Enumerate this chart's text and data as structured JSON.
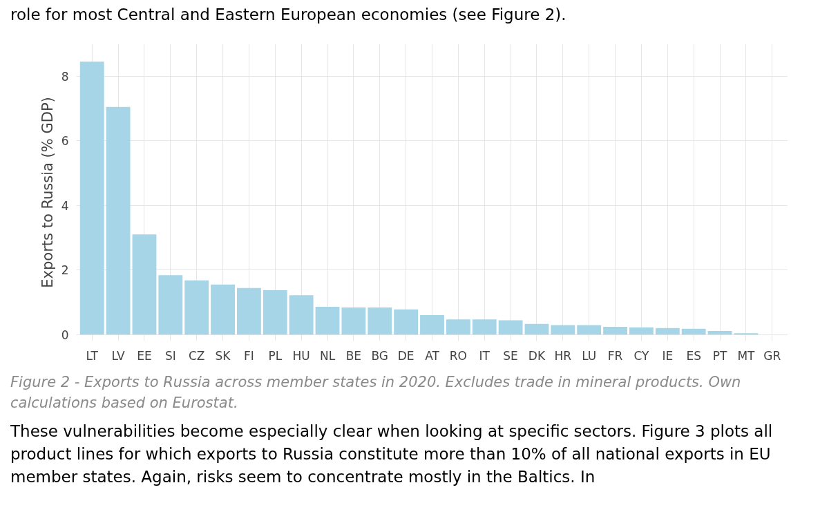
{
  "chart_data": {
    "type": "bar",
    "ylabel": "Exports to Russia (% GDP)",
    "categories": [
      "LT",
      "LV",
      "EE",
      "SI",
      "CZ",
      "SK",
      "FI",
      "PL",
      "HU",
      "NL",
      "BE",
      "BG",
      "DE",
      "AT",
      "RO",
      "IT",
      "SE",
      "DK",
      "HR",
      "LU",
      "FR",
      "CY",
      "IE",
      "ES",
      "PT",
      "MT",
      "GR"
    ],
    "values": [
      8.45,
      7.05,
      3.1,
      1.84,
      1.68,
      1.55,
      1.44,
      1.37,
      1.22,
      0.86,
      0.84,
      0.84,
      0.78,
      0.6,
      0.47,
      0.47,
      0.44,
      0.33,
      0.29,
      0.29,
      0.24,
      0.22,
      0.2,
      0.18,
      0.11,
      0.04,
      null
    ],
    "color": "#a6d5e8",
    "ylim": [
      -0.2,
      9.0
    ],
    "yticks": [
      0,
      2,
      4,
      6,
      8
    ],
    "grid": true,
    "annotations": [
      "role for most Central and Eastern European economies (see Figure 2).",
      "Figure 2 - Exports to Russia across member states in 2020. Excludes trade in mineral products. Own calculations based on Eurostat.",
      "These vulnerabilities become especially clear when looking at specific sectors. Figure 3 plots all product lines for which exports to Russia constitute more than 10% of all national exports in EU member states. Again, risks seem to concentrate mostly in the Baltics. In"
    ]
  }
}
